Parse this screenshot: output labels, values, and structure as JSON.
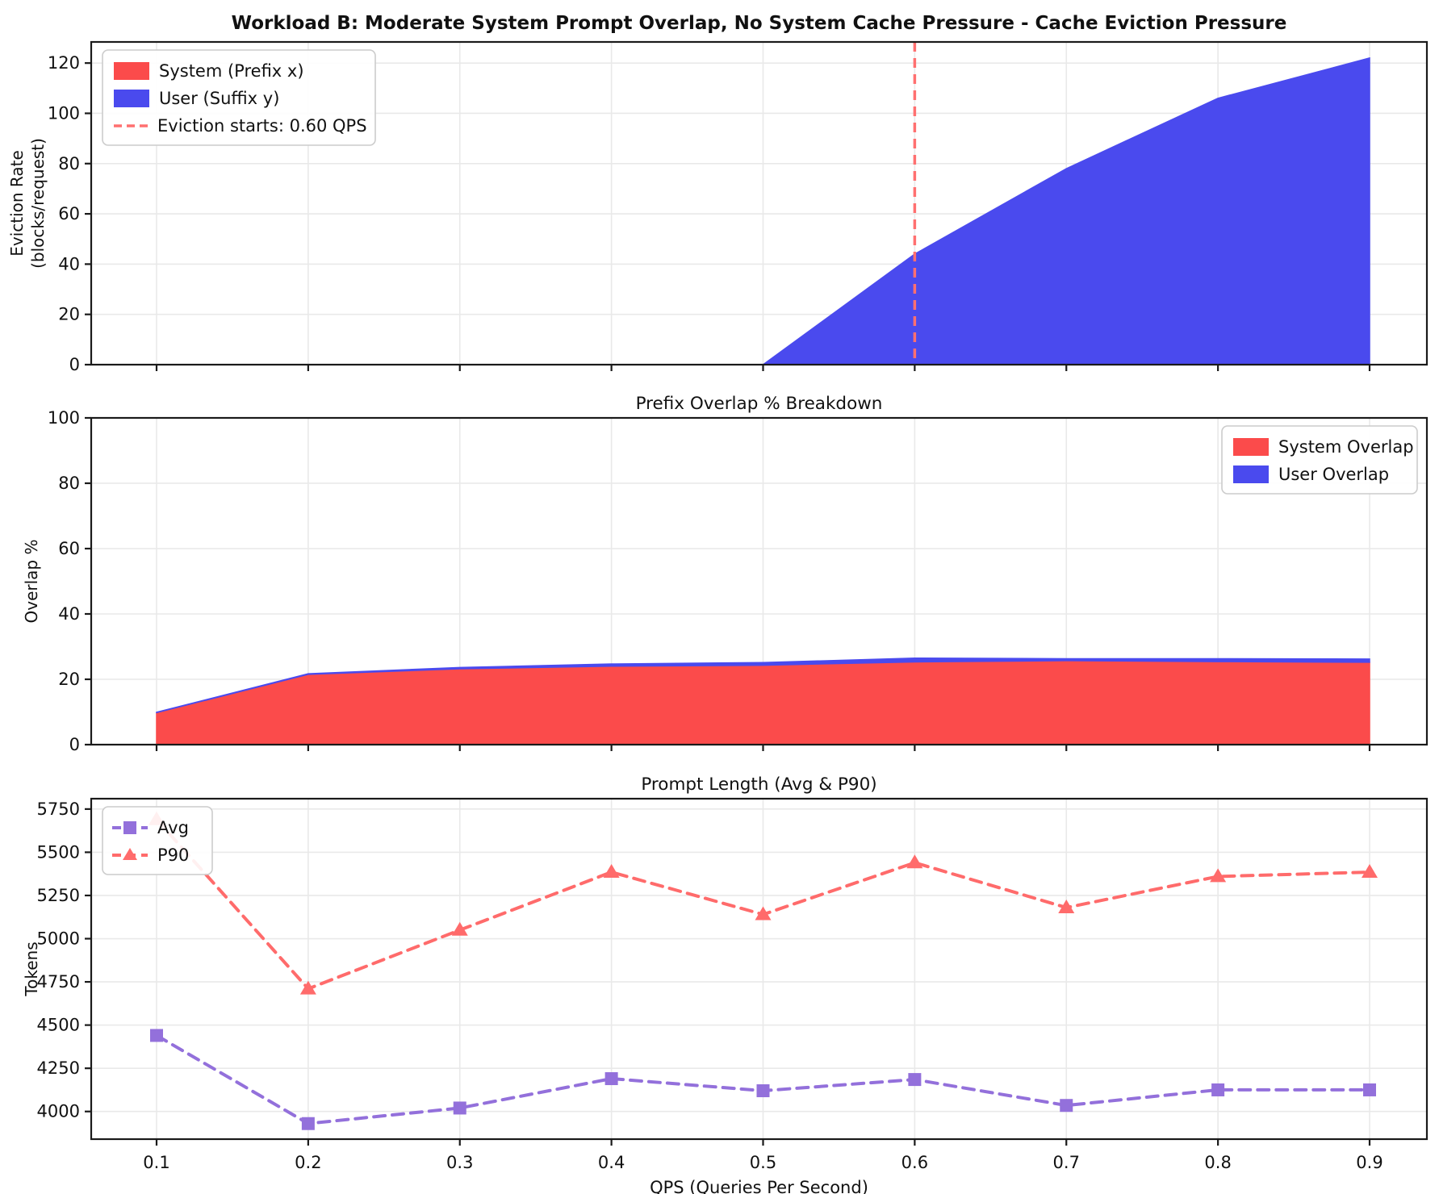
{
  "figure_title": "Workload B: Moderate System Prompt Overlap, No System Cache Pressure - Cache Eviction Pressure",
  "colors": {
    "system_red": "#FB4B4B",
    "user_blue": "#4A4AEE",
    "eviction_line_red": "#FF7070",
    "avg_purple": "#9370DB",
    "p90_red": "#FF6B6B",
    "grid": "#E9E9E9",
    "spine": "#1A1A1A",
    "legend_border": "#CCCCCC",
    "background": "#FFFFFF"
  },
  "chart_data": [
    {
      "type": "area",
      "stacked": true,
      "title": "Workload B: Moderate System Prompt Overlap, No System Cache Pressure - Cache Eviction Pressure",
      "ylabel_lines": [
        "Eviction Rate",
        "(blocks/request)"
      ],
      "x": [
        0.1,
        0.2,
        0.3,
        0.4,
        0.5,
        0.6,
        0.7,
        0.8,
        0.9
      ],
      "series": [
        {
          "name": "System (Prefix x)",
          "color": "#FB4B4B",
          "values": [
            0,
            0,
            0,
            0,
            0,
            0,
            0,
            0,
            0
          ]
        },
        {
          "name": "User (Suffix y)",
          "color": "#4A4AEE",
          "values": [
            0,
            0,
            0,
            0,
            0,
            44,
            78,
            106,
            122
          ]
        }
      ],
      "annotations": [
        {
          "type": "vline",
          "x": 0.6,
          "style": "dashed",
          "color": "#FF7070",
          "label": "Eviction starts: 0.60 QPS"
        }
      ],
      "ylim": [
        0,
        128.4
      ],
      "yticks": [
        0,
        20,
        40,
        60,
        80,
        100,
        120
      ],
      "grid": true,
      "legend_position": "upper-left"
    },
    {
      "type": "area",
      "stacked": true,
      "title": "Prefix Overlap % Breakdown",
      "ylabel": "Overlap %",
      "x": [
        0.1,
        0.2,
        0.3,
        0.4,
        0.5,
        0.6,
        0.7,
        0.8,
        0.9
      ],
      "series": [
        {
          "name": "System Overlap",
          "color": "#FB4B4B",
          "values": [
            9.8,
            21.5,
            23.2,
            24.0,
            24.3,
            25.3,
            25.7,
            25.4,
            25.2
          ]
        },
        {
          "name": "User Overlap",
          "color": "#4A4AEE",
          "values": [
            0.1,
            0.2,
            0.4,
            0.7,
            0.8,
            1.2,
            0.6,
            0.9,
            1.0
          ]
        }
      ],
      "ylim": [
        0,
        100
      ],
      "yticks": [
        0,
        20,
        40,
        60,
        80,
        100
      ],
      "grid": true,
      "legend_position": "upper-right"
    },
    {
      "type": "line",
      "title": "Prompt Length (Avg & P90)",
      "ylabel": "Tokens",
      "xlabel": "QPS (Queries Per Second)",
      "x": [
        0.1,
        0.2,
        0.3,
        0.4,
        0.5,
        0.6,
        0.7,
        0.8,
        0.9
      ],
      "xtick_labels": [
        "0.1",
        "0.2",
        "0.3",
        "0.4",
        "0.5",
        "0.6",
        "0.7",
        "0.8",
        "0.9"
      ],
      "series": [
        {
          "name": "Avg",
          "color": "#9370DB",
          "marker": "square",
          "linestyle": "dashed",
          "values": [
            4440,
            3930,
            4020,
            4190,
            4120,
            4185,
            4035,
            4125,
            4125
          ]
        },
        {
          "name": "P90",
          "color": "#FF6B6B",
          "marker": "triangle",
          "linestyle": "dashed",
          "values": [
            5690,
            4710,
            5050,
            5385,
            5140,
            5440,
            5180,
            5360,
            5385
          ]
        }
      ],
      "ylim": [
        3840,
        5810
      ],
      "yticks": [
        4000,
        4250,
        4500,
        4750,
        5000,
        5250,
        5500,
        5750
      ],
      "grid": true,
      "legend_position": "upper-left"
    }
  ]
}
